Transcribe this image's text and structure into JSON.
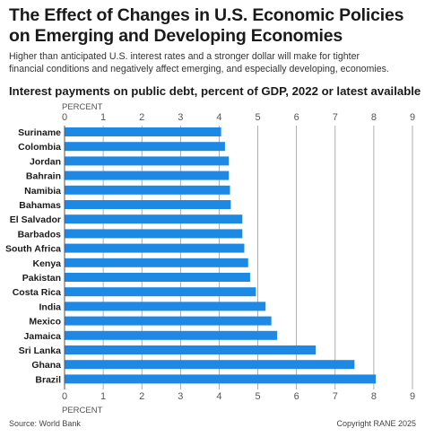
{
  "header": {
    "title_line1": "The Effect of Changes in U.S. Economic Policies",
    "title_line2": "on Emerging and Developing Economies",
    "subtitle_line1": "Higher than anticipated U.S. interest rates and a stronger dollar will make for tighter",
    "subtitle_line2": "financial conditions and negatively affect emerging, and especially developing, economies."
  },
  "chart_data": {
    "type": "bar",
    "orientation": "horizontal",
    "title": "Interest payments on public debt, percent of GDP, 2022 or latest available",
    "xlabel": "PERCENT",
    "xlim": [
      0,
      9
    ],
    "xticks": [
      0,
      1,
      2,
      3,
      4,
      5,
      6,
      7,
      8,
      9
    ],
    "grid": true,
    "color": "#1e88e5",
    "categories": [
      "Suriname",
      "Colombia",
      "Jordan",
      "Bahrain",
      "Namibia",
      "Bahamas",
      "El Salvador",
      "Barbados",
      "South Africa",
      "Kenya",
      "Pakistan",
      "Costa Rica",
      "India",
      "Mexico",
      "Jamaica",
      "Sri Lanka",
      "Ghana",
      "Brazil"
    ],
    "values": [
      4.05,
      4.15,
      4.25,
      4.25,
      4.28,
      4.3,
      4.6,
      4.6,
      4.65,
      4.75,
      4.8,
      4.95,
      5.2,
      5.35,
      5.5,
      6.5,
      7.5,
      8.05
    ]
  },
  "footer": {
    "source": "Source: World Bank",
    "copyright": "Copyright RANE 2025"
  }
}
